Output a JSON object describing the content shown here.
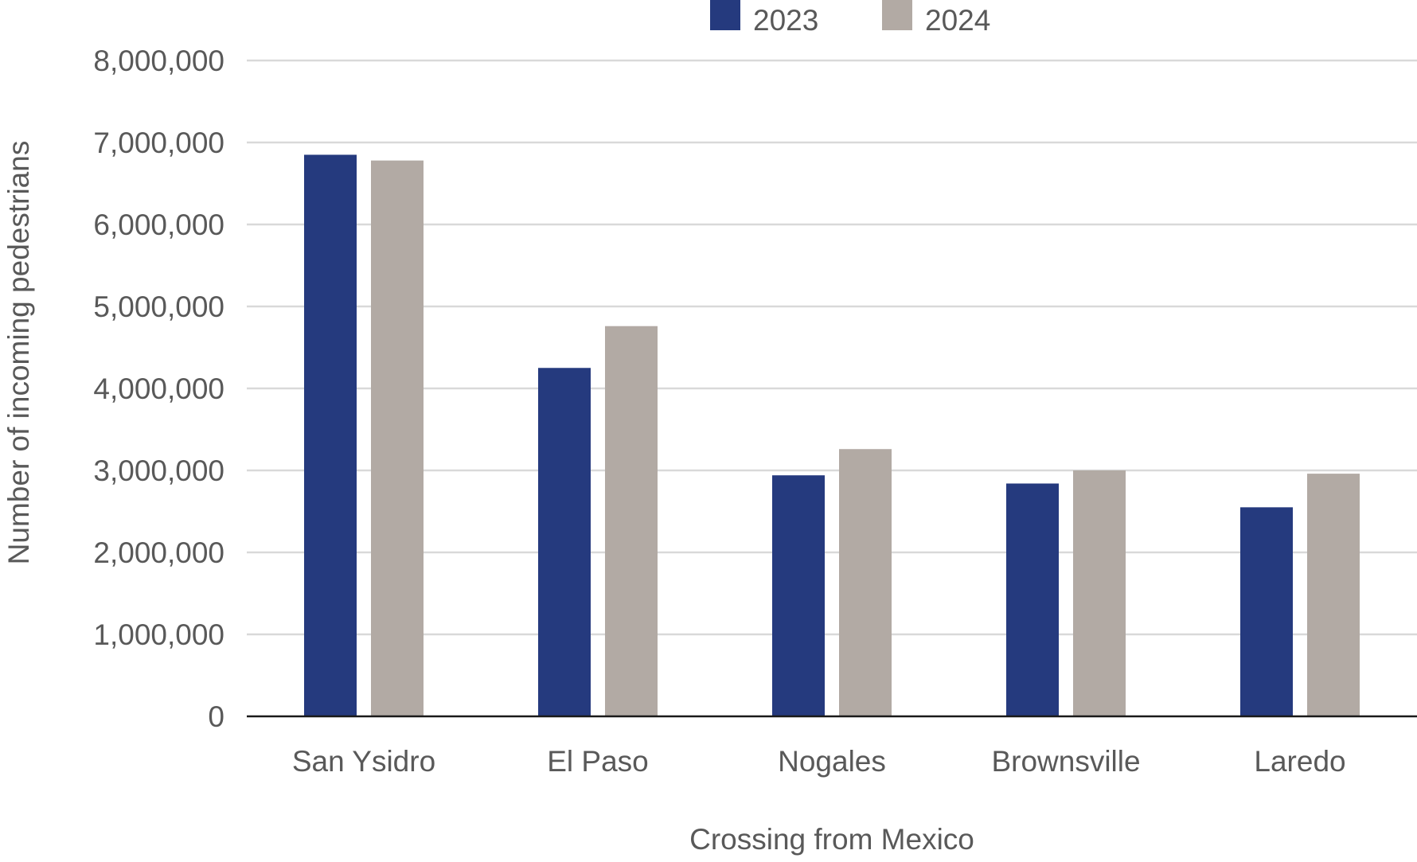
{
  "chart_data": {
    "type": "bar",
    "title": "",
    "xlabel": "Crossing from Mexico",
    "ylabel": "Number of incoming pedestrians",
    "categories": [
      "San Ysidro",
      "El Paso",
      "Nogales",
      "Brownsville",
      "Laredo"
    ],
    "series": [
      {
        "name": "2023",
        "color": "#253a7e",
        "values": [
          6850000,
          4250000,
          2940000,
          2840000,
          2550000
        ]
      },
      {
        "name": "2024",
        "color": "#b2aaa4",
        "values": [
          6780000,
          4760000,
          3260000,
          3000000,
          2960000
        ]
      }
    ],
    "ylim": [
      0,
      8000000
    ],
    "yticks": [
      0,
      1000000,
      2000000,
      3000000,
      4000000,
      5000000,
      6000000,
      7000000,
      8000000
    ],
    "ytick_labels": [
      "0",
      "1,000,000",
      "2,000,000",
      "3,000,000",
      "4,000,000",
      "5,000,000",
      "6,000,000",
      "7,000,000",
      "8,000,000"
    ],
    "grid": true,
    "legend": "top-center"
  }
}
